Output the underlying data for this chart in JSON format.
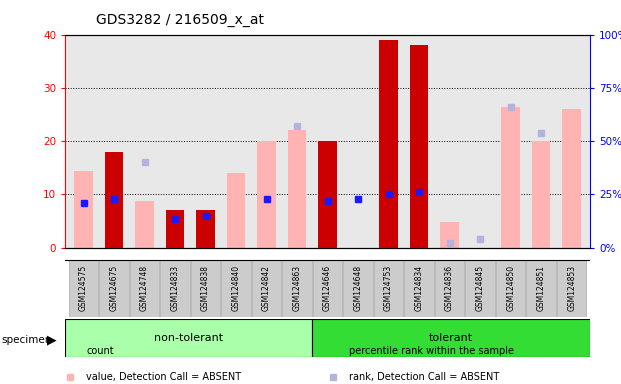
{
  "title": "GDS3282 / 216509_x_at",
  "categories": [
    "GSM124575",
    "GSM124675",
    "GSM124748",
    "GSM124833",
    "GSM124838",
    "GSM124840",
    "GSM124842",
    "GSM124863",
    "GSM124646",
    "GSM124648",
    "GSM124753",
    "GSM124834",
    "GSM124836",
    "GSM124845",
    "GSM124850",
    "GSM124851",
    "GSM124853"
  ],
  "count_values": [
    0,
    18,
    0,
    7,
    7,
    0,
    0,
    0,
    20,
    0,
    39,
    38,
    0,
    0,
    0,
    0,
    0
  ],
  "pct_rank_values": [
    21,
    23,
    null,
    13.5,
    15,
    null,
    23,
    null,
    22,
    23,
    25,
    26,
    null,
    null,
    null,
    null,
    null
  ],
  "absent_value_pct": [
    36,
    null,
    22,
    null,
    null,
    35,
    50,
    55,
    null,
    null,
    null,
    null,
    12,
    null,
    66,
    50,
    65
  ],
  "absent_rank_pct": [
    null,
    null,
    40,
    null,
    null,
    null,
    null,
    57,
    null,
    null,
    null,
    null,
    2,
    4,
    66,
    54,
    null
  ],
  "left_ylim": [
    0,
    40
  ],
  "right_ylim": [
    0,
    100
  ],
  "left_yticks": [
    0,
    10,
    20,
    30,
    40
  ],
  "right_yticks": [
    0,
    25,
    50,
    75,
    100
  ],
  "right_yticklabels": [
    "0%",
    "25%",
    "50%",
    "75%",
    "100%"
  ],
  "count_color": "#cc0000",
  "pct_rank_color": "#1a1aff",
  "absent_value_color": "#ffb3b3",
  "absent_rank_color": "#b3b3dd",
  "nontolerant_color": "#aaffaa",
  "tolerant_color": "#33dd33",
  "background_color": "#ffffff",
  "plot_bg_color": "#e8e8e8",
  "nt_count": 8,
  "t_count": 9
}
